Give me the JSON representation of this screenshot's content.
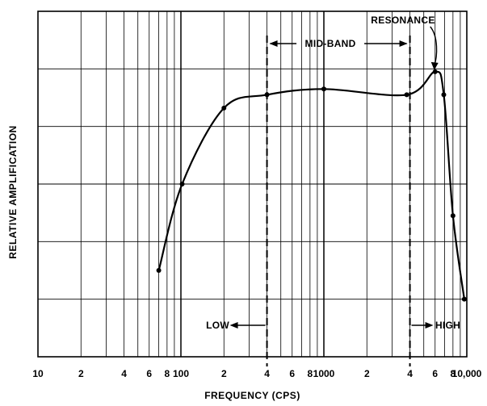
{
  "chart_data": {
    "type": "line",
    "xscale": "log",
    "xlim": [
      10,
      10000
    ],
    "ylim": [
      0,
      6
    ],
    "xlabel": "FREQUENCY (CPS)",
    "ylabel": "RELATIVE AMPLIFICATION",
    "grid": true,
    "legend": "none",
    "x_ticks": [
      {
        "value": 10,
        "label": "10"
      },
      {
        "value": 20,
        "label": "2"
      },
      {
        "value": 40,
        "label": "4"
      },
      {
        "value": 60,
        "label": "6"
      },
      {
        "value": 80,
        "label": "8"
      },
      {
        "value": 100,
        "label": "100"
      },
      {
        "value": 200,
        "label": "2"
      },
      {
        "value": 400,
        "label": "4"
      },
      {
        "value": 600,
        "label": "6"
      },
      {
        "value": 800,
        "label": "8"
      },
      {
        "value": 1000,
        "label": "1000"
      },
      {
        "value": 2000,
        "label": "2"
      },
      {
        "value": 4000,
        "label": "4"
      },
      {
        "value": 6000,
        "label": "6"
      },
      {
        "value": 8000,
        "label": "8"
      },
      {
        "value": 10000,
        "label": "10,000"
      }
    ],
    "series": [
      {
        "x": [
          70,
          102,
          200,
          400,
          1000,
          3800,
          6000,
          6900,
          8000,
          9600
        ],
        "y": [
          1.5,
          3.0,
          4.32,
          4.55,
          4.65,
          4.55,
          4.95,
          4.55,
          2.45,
          1.0
        ]
      }
    ],
    "annotations": {
      "mid_band": "MID-BAND",
      "low": "LOW",
      "high": "HIGH",
      "resonance": "RESONANCE"
    },
    "bands": {
      "low_boundary": 400,
      "high_boundary": 4000
    },
    "resonance_point": {
      "x": 6000,
      "y": 4.95
    }
  }
}
